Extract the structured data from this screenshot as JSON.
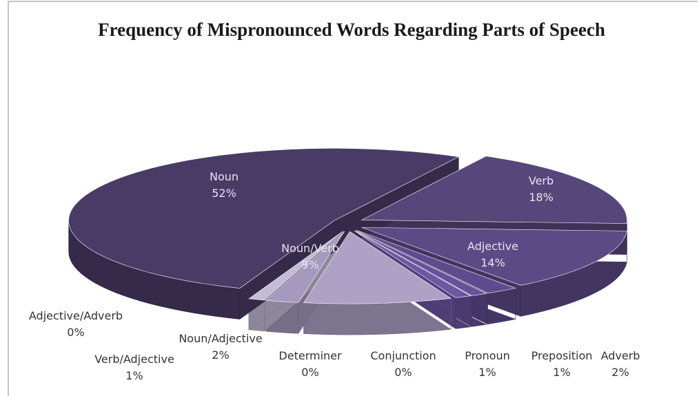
{
  "chart_data": {
    "type": "pie",
    "title": "Frequency of Mispronounced Words Regarding Parts of Speech",
    "categories": [
      "Verb",
      "Adjective",
      "Adverb",
      "Preposition",
      "Pronoun",
      "Conjunction",
      "Determiner",
      "Noun/Verb",
      "Noun/Adjective",
      "Verb/Adjective",
      "Adjective/Adverb",
      "Noun"
    ],
    "values": [
      18,
      14,
      2,
      1,
      1,
      0,
      0,
      9,
      2,
      1,
      0,
      52
    ],
    "value_labels": [
      "18%",
      "14%",
      "2%",
      "1%",
      "1%",
      "0%",
      "0%",
      "9%",
      "2%",
      "1%",
      "0%",
      "52%"
    ],
    "colors": [
      "#574679",
      "#5c4a86",
      "#5e4b8d",
      "#65529a",
      "#6b58a2",
      "#6f5ca6",
      "#7360aa",
      "#ada2c6",
      "#a59abd",
      "#c3bcd6",
      "#dcd7e6",
      "#4a3b66"
    ]
  }
}
